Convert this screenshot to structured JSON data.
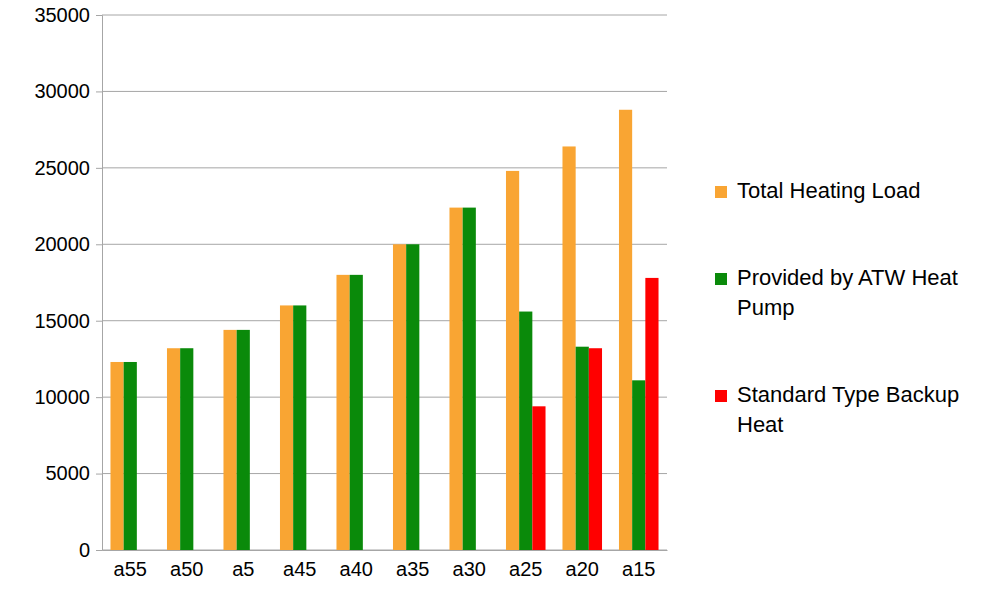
{
  "chart_data": {
    "type": "bar",
    "categories": [
      "a55",
      "a50",
      "a5",
      "a45",
      "a40",
      "a35",
      "a30",
      "a25",
      "a20",
      "a15"
    ],
    "series": [
      {
        "name": "Total Heating Load",
        "color": "#f9a533",
        "values": [
          12300,
          13200,
          14400,
          16000,
          18000,
          20000,
          22400,
          24800,
          26400,
          28800
        ]
      },
      {
        "name": "Provided by ATW Heat Pump",
        "color": "#0a8a0a",
        "values": [
          12300,
          13200,
          14400,
          16000,
          18000,
          20000,
          22400,
          15600,
          13300,
          11100
        ]
      },
      {
        "name": "Standard Type Backup Heat",
        "color": "#ff0000",
        "values": [
          null,
          null,
          null,
          null,
          null,
          null,
          null,
          9400,
          13200,
          17800
        ]
      }
    ],
    "ylim": [
      0,
      35000
    ],
    "yticks": [
      0,
      5000,
      10000,
      15000,
      20000,
      25000,
      30000,
      35000
    ],
    "grid": true,
    "legend": "right"
  }
}
